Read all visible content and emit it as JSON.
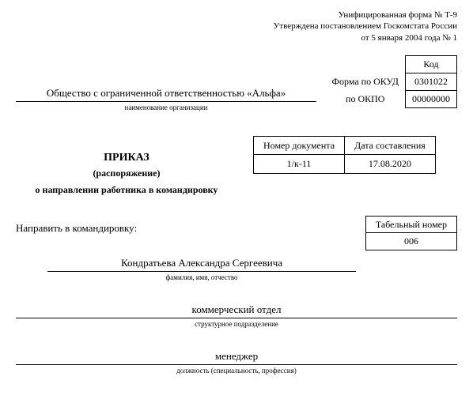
{
  "header": {
    "line1": "Унифицированная форма № Т-9",
    "line2": "Утверждена постановлением Госкомстата России",
    "line3": "от 5 января 2004 года № 1"
  },
  "codes": {
    "code_header": "Код",
    "okud_label": "Форма по ОКУД",
    "okud_value": "0301022",
    "okpo_label": "по ОКПО",
    "okpo_value": "00000000"
  },
  "org": {
    "name": "Общество с ограниченной ответственностью «Альфа»",
    "caption": "наименование организации"
  },
  "prikaz": {
    "title": "ПРИКАЗ",
    "sub": "(распоряжение)",
    "text": "о направлении работника в командировку"
  },
  "meta": {
    "num_header": "Номер документа",
    "date_header": "Дата составления",
    "num_value": "1/к-11",
    "date_value": "17.08.2020"
  },
  "send": {
    "label": "Направить в командировку:",
    "tab_header": "Табельный номер",
    "tab_value": "006"
  },
  "fio": {
    "value": "Кондратьева Александра Сергеевича",
    "caption": "фамилия, имя, отчество"
  },
  "dept": {
    "value": "коммерческий отдел",
    "caption": "структурное подразделение"
  },
  "job": {
    "value": "менеджер",
    "caption": "должность (специальность, профессия)"
  }
}
